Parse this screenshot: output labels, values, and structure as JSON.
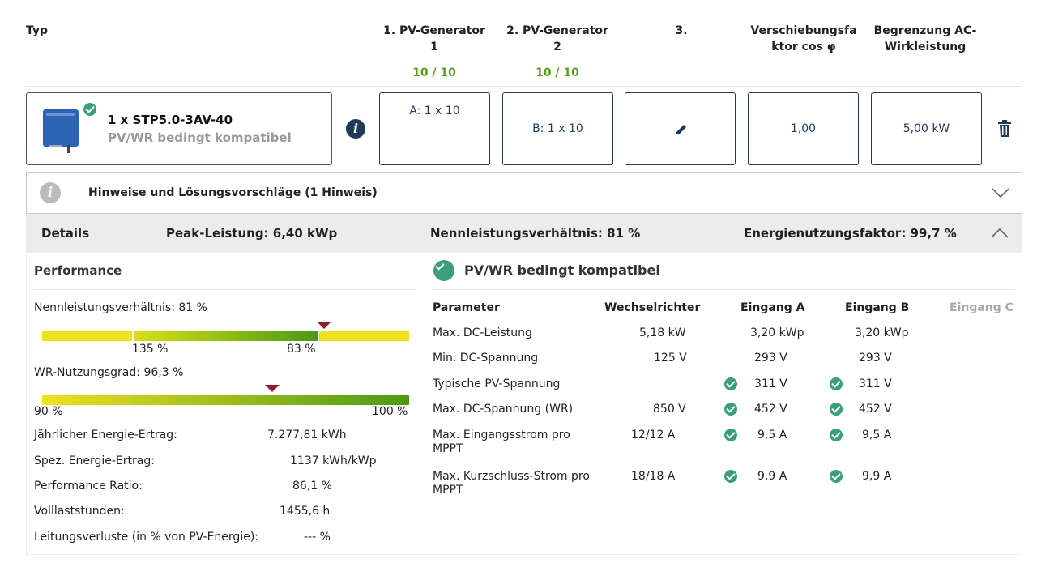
{
  "header": {
    "typ": "Typ",
    "pv1_line1": "1. PV-Generator",
    "pv1_line2": "1",
    "pv1_count": "10 / 10",
    "pv2_line1": "2. PV-Generator",
    "pv2_line2": "2",
    "pv2_count": "10 / 10",
    "pv3": "3.",
    "cos_line1": "Verschiebungsfa",
    "cos_line2": "ktor cos φ",
    "ac_line1": "Begrenzung AC-",
    "ac_line2": "Wirkleistung"
  },
  "inverter": {
    "name": "1 x STP5.0-3AV-40",
    "status": "PV/WR bedingt kompatibel",
    "gen_a": "A: 1 x 10",
    "gen_b": "B: 1 x 10",
    "cos_value": "1,00",
    "ac_value": "5,00 kW"
  },
  "hints": {
    "label": "Hinweise und Lösungsvorschläge (1 Hinweis)"
  },
  "details": {
    "label": "Details",
    "peak": "Peak-Leistung: 6,40 kWp",
    "ratio": "Nennleistungsverhältnis: 81 %",
    "energy_factor": "Energienutzungsfaktor: 99,7 %"
  },
  "performance": {
    "title": "Performance",
    "nenn_label": "Nennleistungsverhältnis: 81 %",
    "nenn_marks": [
      "135 %",
      "83 %"
    ],
    "nenn_fraction": 0.81,
    "wr_label": "WR-Nutzungsgrad: 96,3 %",
    "wr_min": "90 %",
    "wr_max": "100 %",
    "wr_fraction": 0.63,
    "rows": [
      {
        "label": "Jährlicher Energie-Ertrag:",
        "value": "7.277,81 kWh"
      },
      {
        "label": "Spez. Energie-Ertrag:",
        "value": "1137 kWh/kWp"
      },
      {
        "label": "Performance Ratio:",
        "value": "86,1 %"
      },
      {
        "label": "Volllaststunden:",
        "value": "1455,6 h"
      },
      {
        "label": "Leitungsverluste (in % von PV-Energie):",
        "value": "--- %"
      }
    ]
  },
  "compat": {
    "title": "PV/WR bedingt kompatibel",
    "col_param": "Parameter",
    "col_wr": "Wechselrichter",
    "col_a": "Eingang A",
    "col_b": "Eingang B",
    "col_c": "Eingang C",
    "rows": [
      {
        "p1": "Max. DC-Leistung",
        "p2": "",
        "wr": "5,18 kW",
        "a": "3,20 kWp",
        "b": "3,20 kWp",
        "chk": false
      },
      {
        "p1": "Min. DC-Spannung",
        "p2": "",
        "wr": "125 V",
        "a": "293 V",
        "b": "293 V",
        "chk": false
      },
      {
        "p1": "Typische PV-Spannung",
        "p2": "",
        "wr": "",
        "a": "311 V",
        "b": "311 V",
        "chk": true
      },
      {
        "p1": "Max. DC-Spannung (WR)",
        "p2": "",
        "wr": "850 V",
        "a": "452 V",
        "b": "452 V",
        "chk": true
      },
      {
        "p1": "Max. Eingangsstrom pro",
        "p2": "MPPT",
        "wr": "12/12 A",
        "a": "9,5 A",
        "b": "9,5 A",
        "chk": true
      },
      {
        "p1": "Max. Kurzschluss-Strom pro",
        "p2": "MPPT",
        "wr": "18/18 A",
        "a": "9,9 A",
        "b": "9,9 A",
        "chk": true
      }
    ]
  },
  "colors": {
    "accent": "#1f3b5a",
    "ok": "#3aa07a",
    "count_green": "#5a9e1c",
    "bar_yellow": "#f0e020",
    "bar_green": "#4a9a14",
    "marker": "#8c1f2c"
  }
}
